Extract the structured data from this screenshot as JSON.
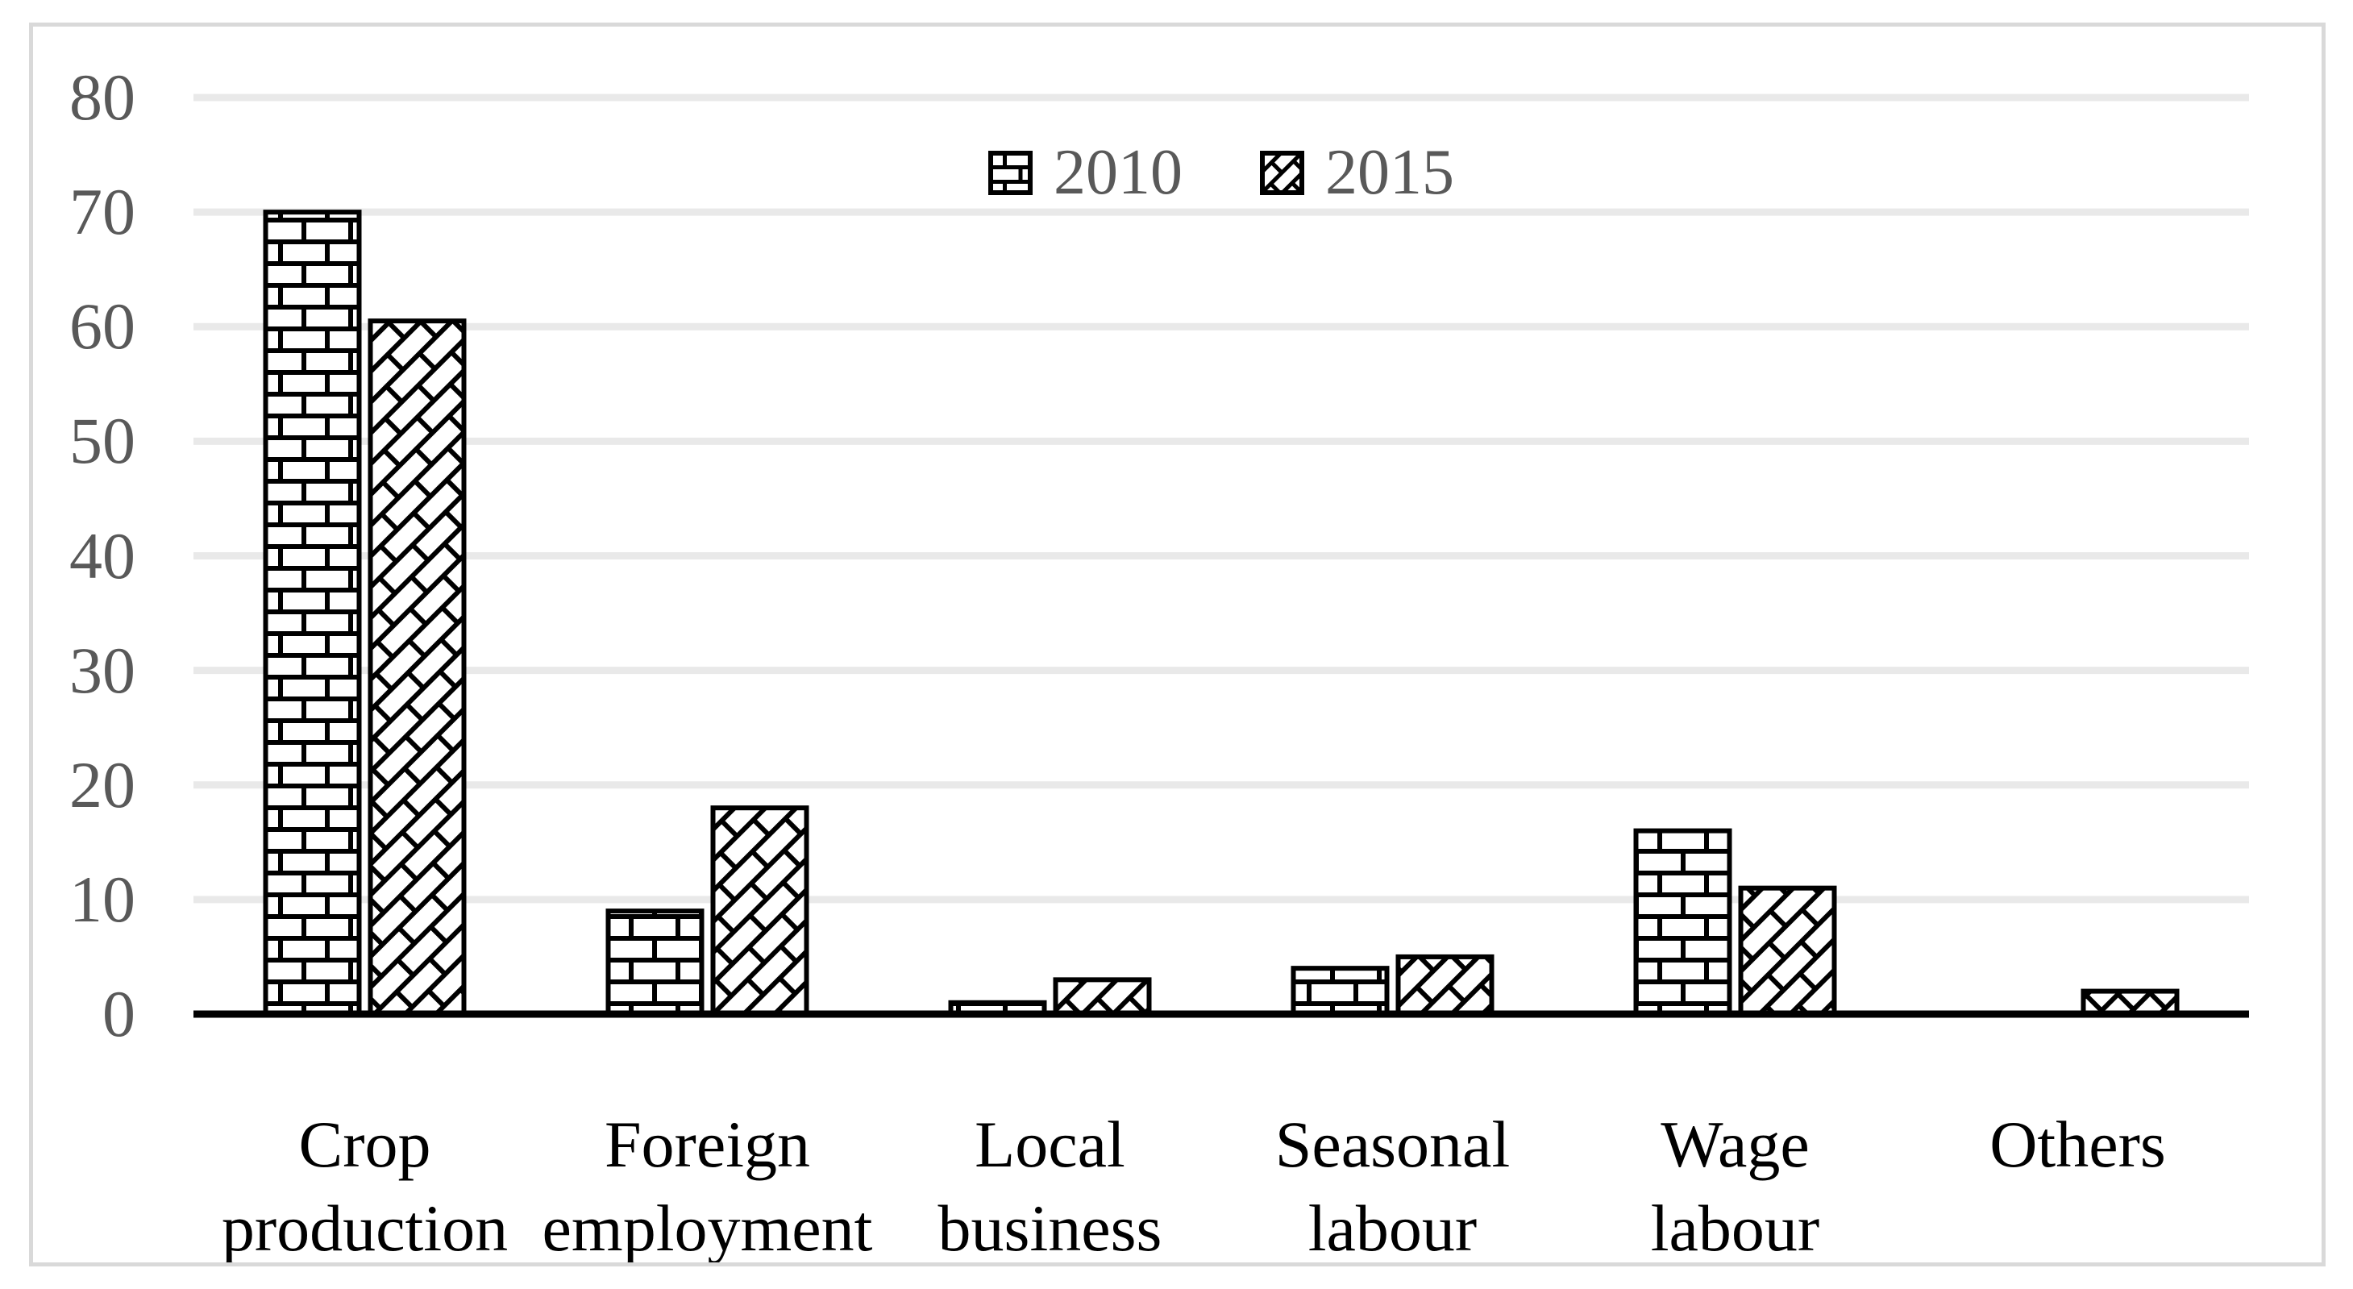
{
  "figure": {
    "background_color": "#ffffff",
    "border_color": "#d9d9d9"
  },
  "chart_data": {
    "type": "bar",
    "title": "",
    "xlabel": "",
    "ylabel": "",
    "categories": [
      "Crop production",
      "Foreign employment",
      "Local business",
      "Seasonal labour",
      "Wage labour",
      "Others"
    ],
    "category_label_lines": [
      [
        "Crop",
        "production"
      ],
      [
        "Foreign",
        "employment"
      ],
      [
        "Local",
        "business"
      ],
      [
        "Seasonal",
        "labour"
      ],
      [
        "Wage",
        "labour"
      ],
      [
        "Others"
      ]
    ],
    "series": [
      {
        "name": "2010",
        "pattern": "brick",
        "values": [
          70,
          9,
          1,
          4,
          16,
          0
        ]
      },
      {
        "name": "2015",
        "pattern": "diagonal-brick",
        "values": [
          60.5,
          18,
          3,
          5,
          11,
          2
        ]
      }
    ],
    "ylim": [
      0,
      80
    ],
    "yticks": [
      0,
      10,
      20,
      30,
      40,
      50,
      60,
      70,
      80
    ],
    "grid": "horizontal",
    "legend_position": "top-center",
    "colors": {
      "bar_fill": "#ffffff",
      "bar_outline": "#000000",
      "gridline": "#e9e9e9",
      "baseline": "#000000",
      "ytick_label": "#595959",
      "xtick_label": "#000000",
      "legend_label": "#595959"
    }
  }
}
